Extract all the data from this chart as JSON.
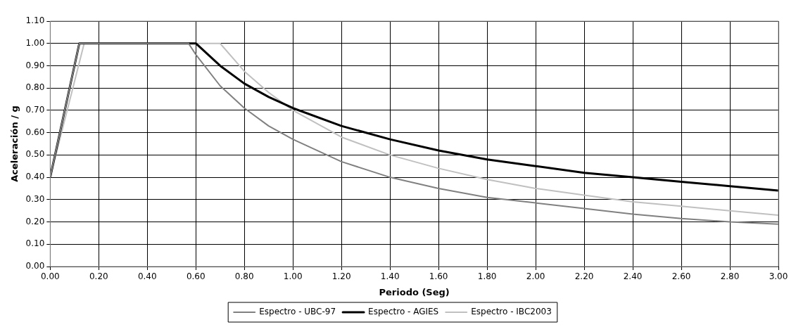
{
  "chart_data": {
    "type": "line",
    "xlabel": "Periodo (Seg)",
    "ylabel": "Aceleración / g",
    "xlim": [
      0,
      3
    ],
    "ylim": [
      0,
      1.1
    ],
    "xticks": [
      {
        "value": 0,
        "label": "0.00"
      },
      {
        "value": 0.2,
        "label": "0.20"
      },
      {
        "value": 0.4,
        "label": "0.40"
      },
      {
        "value": 0.6,
        "label": "0.60"
      },
      {
        "value": 0.8,
        "label": "0.80"
      },
      {
        "value": 1,
        "label": "1.00"
      },
      {
        "value": 1.2,
        "label": "1.20"
      },
      {
        "value": 1.4,
        "label": "1.40"
      },
      {
        "value": 1.6,
        "label": "1.60"
      },
      {
        "value": 1.8,
        "label": "1.80"
      },
      {
        "value": 2,
        "label": "2.00"
      },
      {
        "value": 2.2,
        "label": "2.20"
      },
      {
        "value": 2.4,
        "label": "2.40"
      },
      {
        "value": 2.6,
        "label": "2.60"
      },
      {
        "value": 2.8,
        "label": "2.80"
      },
      {
        "value": 3,
        "label": "3.00"
      }
    ],
    "yticks": [
      {
        "value": 0,
        "label": "0.00"
      },
      {
        "value": 0.1,
        "label": "0.10"
      },
      {
        "value": 0.2,
        "label": "0.20"
      },
      {
        "value": 0.3,
        "label": "0.30"
      },
      {
        "value": 0.4,
        "label": "0.40"
      },
      {
        "value": 0.5,
        "label": "0.50"
      },
      {
        "value": 0.6,
        "label": "0.60"
      },
      {
        "value": 0.7,
        "label": "0.70"
      },
      {
        "value": 0.8,
        "label": "0.80"
      },
      {
        "value": 0.9,
        "label": "0.90"
      },
      {
        "value": 1,
        "label": "1.00"
      },
      {
        "value": 1.1,
        "label": "1.10"
      }
    ],
    "grid": true,
    "legend": "bottom",
    "marker": "none",
    "line_style": "solid",
    "series": [
      {
        "name": "Espectro - UBC-97",
        "color": "#808080",
        "x": [
          0,
          0.12,
          0.57,
          0.6,
          0.7,
          0.8,
          0.9,
          1.0,
          1.2,
          1.4,
          1.6,
          1.8,
          2.0,
          2.2,
          2.4,
          2.6,
          2.8,
          3.0
        ],
        "values": [
          0.4,
          1.0,
          1.0,
          0.95,
          0.81,
          0.71,
          0.63,
          0.57,
          0.47,
          0.4,
          0.35,
          0.31,
          0.285,
          0.26,
          0.235,
          0.215,
          0.2,
          0.19
        ]
      },
      {
        "name": "Espectro - AGIES",
        "color": "#000000",
        "x": [
          0,
          0.12,
          0.6,
          0.7,
          0.8,
          0.9,
          1.0,
          1.2,
          1.4,
          1.6,
          1.8,
          2.0,
          2.2,
          2.4,
          2.6,
          2.8,
          3.0
        ],
        "values": [
          0.4,
          1.0,
          1.0,
          0.9,
          0.82,
          0.76,
          0.71,
          0.63,
          0.57,
          0.52,
          0.48,
          0.45,
          0.42,
          0.4,
          0.38,
          0.36,
          0.34
        ]
      },
      {
        "name": "Espectro - IBC2003",
        "color": "#c0c0c0",
        "x": [
          0,
          0.14,
          0.7,
          0.8,
          0.9,
          1.0,
          1.2,
          1.4,
          1.6,
          1.8,
          2.0,
          2.2,
          2.4,
          2.6,
          2.8,
          3.0
        ],
        "values": [
          0.4,
          1.0,
          1.0,
          0.875,
          0.78,
          0.7,
          0.58,
          0.5,
          0.44,
          0.39,
          0.35,
          0.32,
          0.29,
          0.27,
          0.25,
          0.23
        ]
      }
    ]
  }
}
